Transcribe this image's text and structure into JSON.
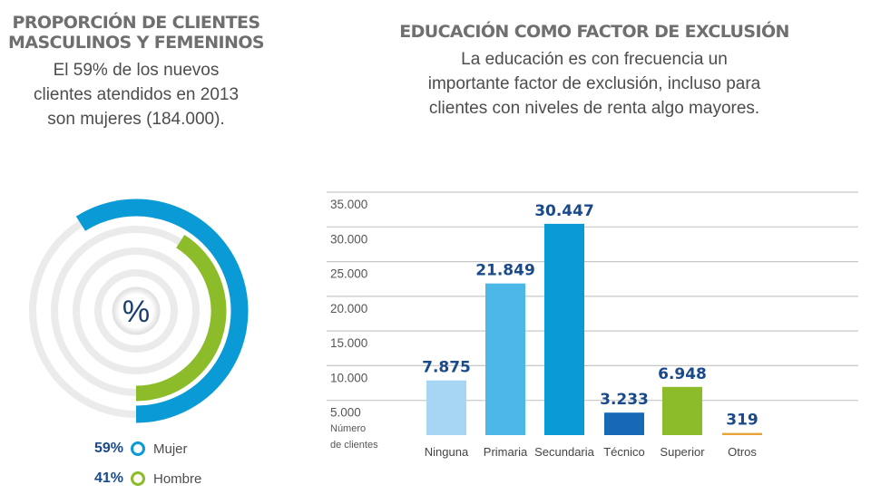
{
  "left": {
    "title_line1": "PROPORCIÓN DE CLIENTES",
    "title_line2": "MASCULINOS Y FEMENINOS",
    "sub_line1": "El 59% de los nuevos",
    "sub_line2": "clientes atendidos en 2013",
    "sub_line3": "son mujeres (184.000).",
    "center_symbol": "%",
    "legend": [
      {
        "pct": "59%",
        "label": "Mujer",
        "color": "#0a9ad6"
      },
      {
        "pct": "41%",
        "label": "Hombre",
        "color": "#8cbc2a"
      }
    ]
  },
  "right": {
    "title": "EDUCACIÓN COMO FACTOR DE EXCLUSIÓN",
    "sub_line1": "La educación es con frecuencia un",
    "sub_line2": "importante factor de exclusión, incluso para",
    "sub_line3": "clientes con niveles de renta algo mayores."
  },
  "chart_data": [
    {
      "type": "pie",
      "categories": [
        "Mujer",
        "Hombre"
      ],
      "values": [
        59,
        41
      ],
      "colors": [
        "#0a9ad6",
        "#8cbc2a"
      ]
    },
    {
      "type": "bar",
      "categories": [
        "Ninguna",
        "Primaria",
        "Secundaria",
        "Técnico",
        "Superior",
        "Otros"
      ],
      "values": [
        7875,
        21849,
        30447,
        3233,
        6948,
        319
      ],
      "value_labels": [
        "7.875",
        "21.849",
        "30.447",
        "3.233",
        "6.948",
        "319"
      ],
      "colors": [
        "#a6d6f3",
        "#4cb8e8",
        "#0a9ad6",
        "#1768b5",
        "#8cbc2a",
        "#e9a33b"
      ],
      "yticks": [
        5000,
        10000,
        15000,
        20000,
        25000,
        30000,
        35000
      ],
      "ytick_labels": [
        "5.000",
        "10.000",
        "15.000",
        "20.000",
        "25.000",
        "30.000",
        "35.000"
      ],
      "ylabel_line1": "Número",
      "ylabel_line2": "de clientes",
      "ylim": [
        0,
        35000
      ],
      "grid": true
    }
  ]
}
